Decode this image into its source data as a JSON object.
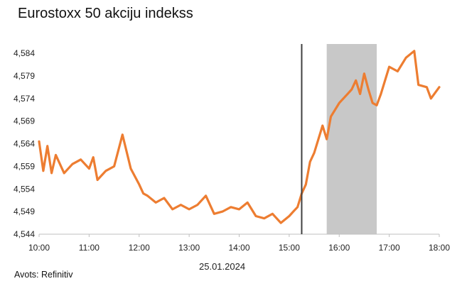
{
  "title": "Eurostoxx 50 akciju indekss",
  "date_label": "25.01.2024",
  "source": "Avots: Refinitiv",
  "colors": {
    "line": "#ED7D31",
    "shade": "#C8C8C8",
    "vline": "#404040",
    "axis": "#BFBFBF"
  },
  "chart_data": {
    "type": "line",
    "title": "Eurostoxx 50 akciju indekss",
    "xlabel": "25.01.2024",
    "ylabel": "",
    "x_ticks": [
      "10:00",
      "11:00",
      "12:00",
      "13:00",
      "14:00",
      "15:00",
      "16:00",
      "17:00",
      "18:00"
    ],
    "y_ticks": [
      "4,544",
      "4,549",
      "4,554",
      "4,559",
      "4,564",
      "4,569",
      "4,574",
      "4,579",
      "4,584"
    ],
    "ylim": [
      4544,
      4584
    ],
    "xlim": [
      "10:00",
      "18:00"
    ],
    "grid": false,
    "vertical_marker": "15:15",
    "shaded_range": [
      "15:45",
      "16:45"
    ],
    "series": [
      {
        "x": [
          "10:00",
          "10:05",
          "10:10",
          "10:15",
          "10:20",
          "10:30",
          "10:40",
          "10:50",
          "11:00",
          "11:05",
          "11:10",
          "11:20",
          "11:30",
          "11:40",
          "11:50",
          "12:00",
          "12:05",
          "12:10",
          "12:20",
          "12:30",
          "12:40",
          "12:50",
          "13:00",
          "13:10",
          "13:20",
          "13:30",
          "13:40",
          "13:50",
          "14:00",
          "14:10",
          "14:20",
          "14:30",
          "14:40",
          "14:50",
          "15:00",
          "15:05",
          "15:10",
          "15:15",
          "15:20",
          "15:25",
          "15:30",
          "15:40",
          "15:45",
          "15:50",
          "16:00",
          "16:10",
          "16:15",
          "16:20",
          "16:25",
          "16:30",
          "16:35",
          "16:40",
          "16:45",
          "16:50",
          "17:00",
          "17:10",
          "17:20",
          "17:30",
          "17:35",
          "17:45",
          "17:50",
          "18:00"
        ],
        "values": [
          4564.5,
          4558.0,
          4563.5,
          4557.5,
          4561.5,
          4557.5,
          4559.5,
          4560.5,
          4558.5,
          4561.0,
          4556.0,
          4558.0,
          4559.0,
          4566.0,
          4558.5,
          4555.0,
          4553.0,
          4552.5,
          4551.0,
          4552.0,
          4549.5,
          4550.5,
          4549.5,
          4550.5,
          4552.5,
          4548.5,
          4549.0,
          4550.0,
          4549.5,
          4551.0,
          4548.0,
          4547.5,
          4548.5,
          4546.5,
          4548.0,
          4549.0,
          4550.0,
          4553.0,
          4555.0,
          4560.0,
          4562.0,
          4568.0,
          4565.0,
          4570.0,
          4573.0,
          4575.0,
          4576.0,
          4578.0,
          4575.0,
          4579.5,
          4576.0,
          4573.0,
          4572.5,
          4575.0,
          4581.0,
          4580.0,
          4583.0,
          4584.5,
          4577.0,
          4576.5,
          4574.0,
          4576.5
        ]
      }
    ]
  }
}
